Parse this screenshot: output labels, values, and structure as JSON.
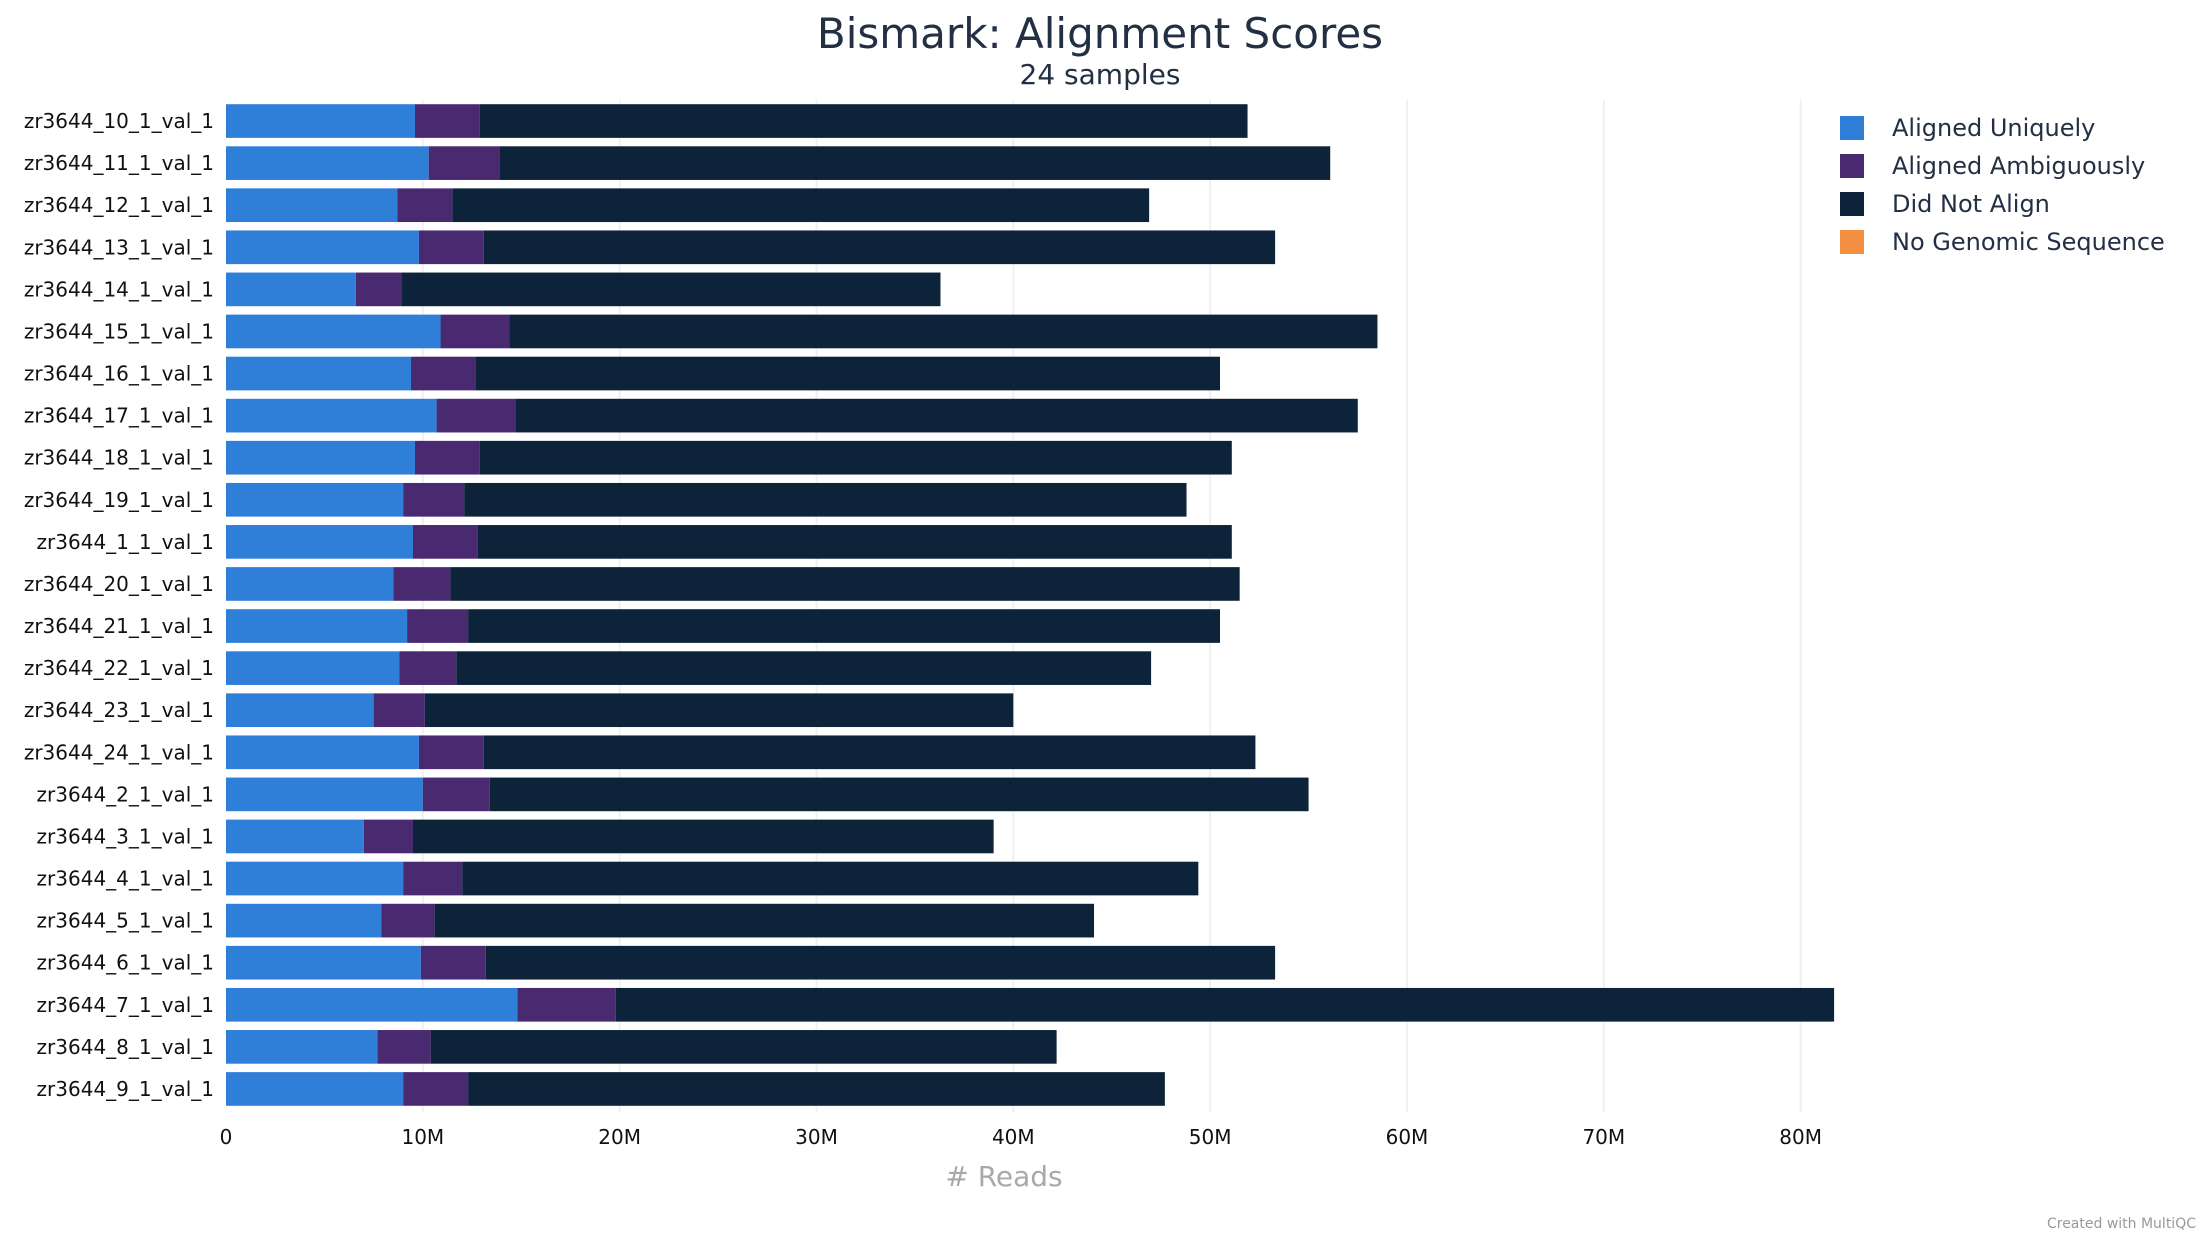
{
  "chart_data": {
    "type": "bar",
    "orientation": "horizontal",
    "stacked": true,
    "title": "Bismark: Alignment Scores",
    "subtitle": "24 samples",
    "xlabel": "# Reads",
    "ylabel": "",
    "xlim": [
      0,
      82000000
    ],
    "x_ticks": [
      {
        "value": 0,
        "label": "0"
      },
      {
        "value": 10000000,
        "label": "10M"
      },
      {
        "value": 20000000,
        "label": "20M"
      },
      {
        "value": 30000000,
        "label": "30M"
      },
      {
        "value": 40000000,
        "label": "40M"
      },
      {
        "value": 50000000,
        "label": "50M"
      },
      {
        "value": 60000000,
        "label": "60M"
      },
      {
        "value": 70000000,
        "label": "70M"
      },
      {
        "value": 80000000,
        "label": "80M"
      }
    ],
    "grid": "vertical",
    "legend_position": "top-right",
    "credit": "Created with MultiQC",
    "categories": [
      "zr3644_10_1_val_1",
      "zr3644_11_1_val_1",
      "zr3644_12_1_val_1",
      "zr3644_13_1_val_1",
      "zr3644_14_1_val_1",
      "zr3644_15_1_val_1",
      "zr3644_16_1_val_1",
      "zr3644_17_1_val_1",
      "zr3644_18_1_val_1",
      "zr3644_19_1_val_1",
      "zr3644_1_1_val_1",
      "zr3644_20_1_val_1",
      "zr3644_21_1_val_1",
      "zr3644_22_1_val_1",
      "zr3644_23_1_val_1",
      "zr3644_24_1_val_1",
      "zr3644_2_1_val_1",
      "zr3644_3_1_val_1",
      "zr3644_4_1_val_1",
      "zr3644_5_1_val_1",
      "zr3644_6_1_val_1",
      "zr3644_7_1_val_1",
      "zr3644_8_1_val_1",
      "zr3644_9_1_val_1"
    ],
    "series": [
      {
        "name": "Aligned Uniquely",
        "color": "#2f7ed8",
        "values": [
          9600000,
          10300000,
          8700000,
          9800000,
          6600000,
          10900000,
          9400000,
          10700000,
          9600000,
          9000000,
          9500000,
          8500000,
          9200000,
          8800000,
          7500000,
          9800000,
          10000000,
          7000000,
          9000000,
          7900000,
          9900000,
          14800000,
          7700000,
          9000000
        ]
      },
      {
        "name": "Aligned Ambiguously",
        "color": "#492970",
        "values": [
          3300000,
          3600000,
          2800000,
          3300000,
          2300000,
          3500000,
          3300000,
          4000000,
          3300000,
          3100000,
          3300000,
          2900000,
          3100000,
          2900000,
          2600000,
          3300000,
          3400000,
          2500000,
          3000000,
          2700000,
          3300000,
          5000000,
          2700000,
          3300000
        ]
      },
      {
        "name": "Did Not Align",
        "color": "#0d233a",
        "values": [
          39000000,
          42200000,
          35400000,
          40200000,
          27400000,
          44100000,
          37800000,
          42800000,
          38200000,
          36700000,
          38300000,
          40100000,
          38200000,
          35300000,
          29900000,
          39200000,
          41600000,
          29500000,
          37400000,
          33500000,
          40100000,
          61900000,
          31800000,
          35400000
        ]
      },
      {
        "name": "No Genomic Sequence",
        "color": "#f28f43",
        "values": [
          0,
          0,
          0,
          0,
          0,
          0,
          0,
          0,
          0,
          0,
          0,
          0,
          0,
          0,
          0,
          0,
          0,
          0,
          0,
          0,
          0,
          0,
          0,
          0
        ]
      }
    ]
  }
}
